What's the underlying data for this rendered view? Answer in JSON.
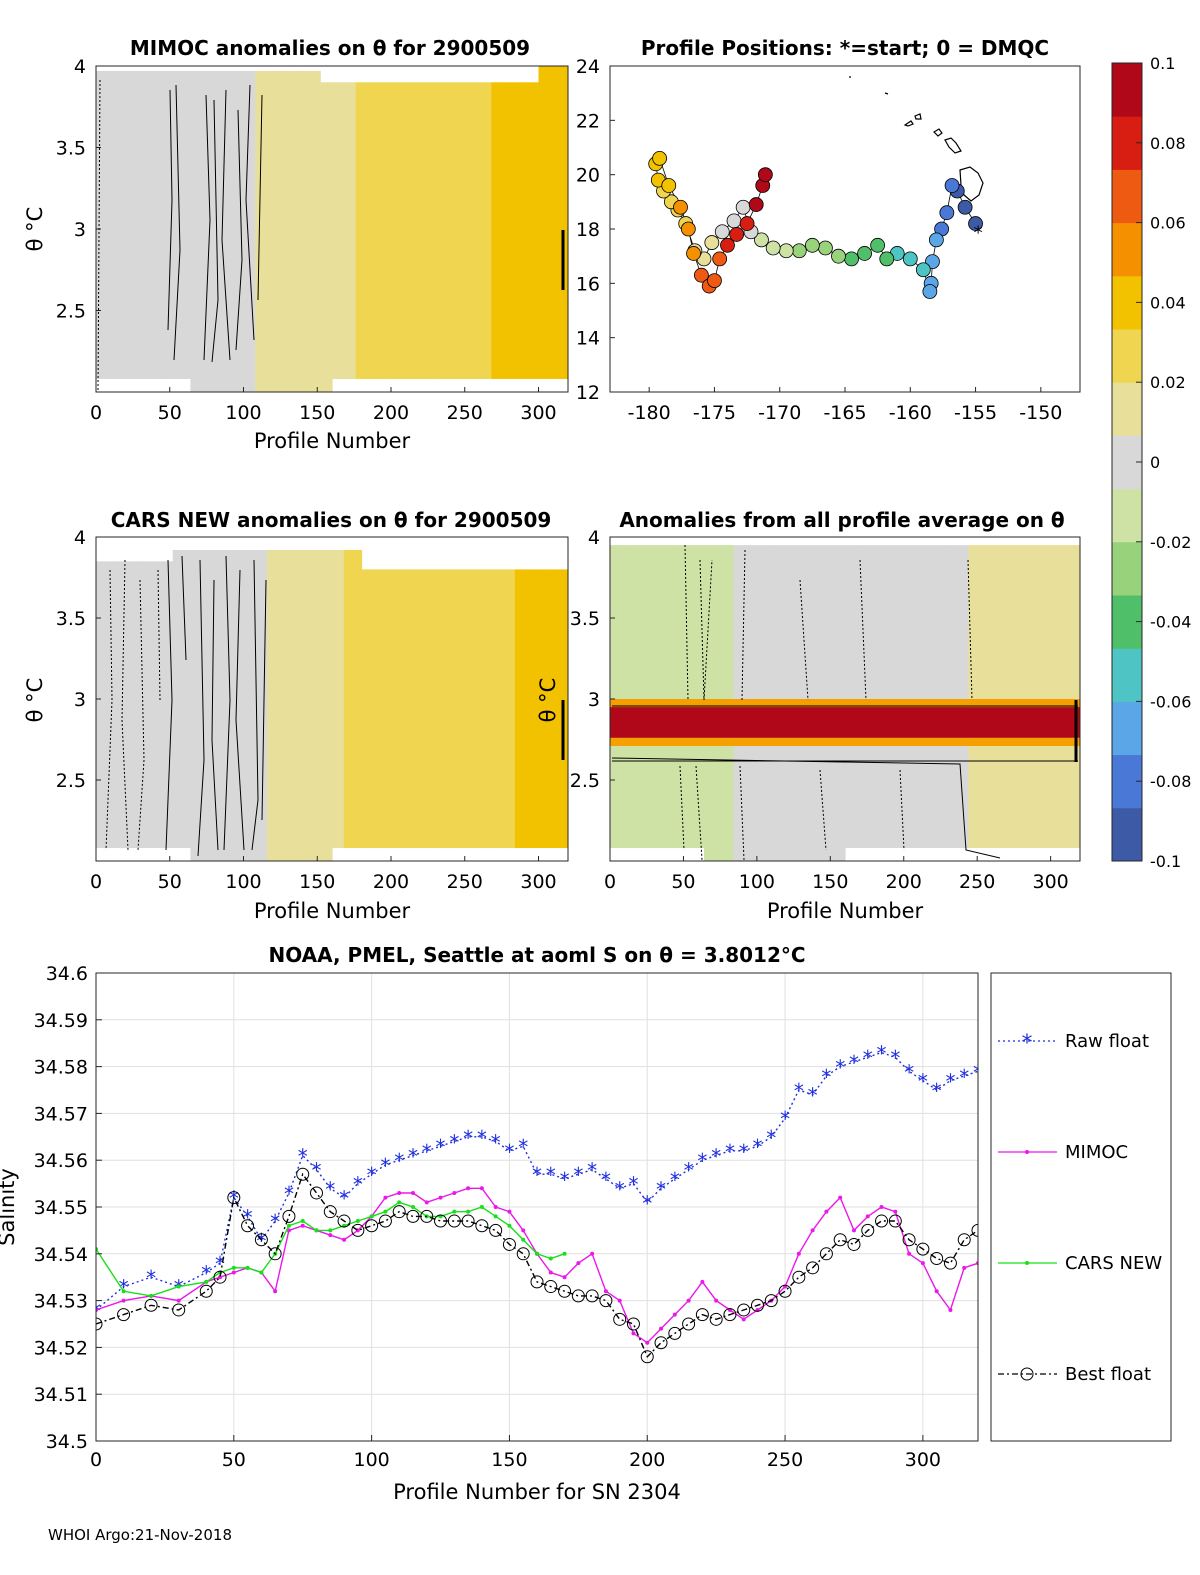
{
  "footer": "WHOI Argo:21-Nov-2018",
  "colorbar": {
    "ticks": [
      "0.1",
      "0.08",
      "0.06",
      "0.04",
      "0.02",
      "0",
      "-0.02",
      "-0.04",
      "-0.06",
      "-0.08",
      "-0.1"
    ],
    "range": [
      -0.1,
      0.1
    ],
    "colors": [
      "#3d5aa6",
      "#4a78d6",
      "#5aa6e6",
      "#4fc4c4",
      "#4fbf6a",
      "#98d27a",
      "#cfe2a6",
      "#d8d8d8",
      "#e8e09a",
      "#f0d650",
      "#f2c200",
      "#f59000",
      "#ee5a12",
      "#d81e12",
      "#b00818"
    ]
  },
  "chart_data": [
    {
      "id": "mimoc",
      "type": "heatmap",
      "title": "MIMOC anomalies on θ  for 2900509",
      "xlabel": "Profile Number",
      "ylabel": "θ °C",
      "xlim": [
        0,
        320
      ],
      "ylim": [
        2.0,
        4.0
      ],
      "xticks": [
        "0",
        "50",
        "100",
        "150",
        "200",
        "250",
        "300"
      ],
      "yticks": [
        "2.5",
        "3",
        "3.5",
        "4"
      ],
      "anomaly_by_profile": [
        [
          0,
          0.0
        ],
        [
          50,
          0.004
        ],
        [
          100,
          0.004
        ],
        [
          130,
          0.012
        ],
        [
          200,
          0.024
        ],
        [
          250,
          0.032
        ],
        [
          300,
          0.036
        ],
        [
          320,
          0.044
        ]
      ]
    },
    {
      "id": "positions",
      "type": "scatter",
      "title": "Profile Positions: *=start; 0 = DMQC",
      "xlim": [
        -183,
        -147
      ],
      "ylim": [
        12,
        24
      ],
      "xticks": [
        "-180",
        "-175",
        "-170",
        "-165",
        "-160",
        "-155",
        "-150"
      ],
      "yticks": [
        "12",
        "14",
        "16",
        "18",
        "20",
        "22",
        "24"
      ],
      "track": [
        [
          -155,
          18.2
        ],
        [
          -155.8,
          18.8
        ],
        [
          -156.4,
          19.4
        ],
        [
          -156.8,
          19.6
        ],
        [
          -157.2,
          18.6
        ],
        [
          -157.6,
          18.0
        ],
        [
          -158,
          17.6
        ],
        [
          -158.3,
          16.8
        ],
        [
          -158.4,
          16.0
        ],
        [
          -158.5,
          15.7
        ],
        [
          -159,
          16.5
        ],
        [
          -160,
          16.9
        ],
        [
          -161,
          17.1
        ],
        [
          -161.8,
          16.9
        ],
        [
          -162.5,
          17.4
        ],
        [
          -163.5,
          17.1
        ],
        [
          -164.5,
          16.9
        ],
        [
          -165.5,
          17.0
        ],
        [
          -166.5,
          17.3
        ],
        [
          -167.5,
          17.4
        ],
        [
          -168.5,
          17.2
        ],
        [
          -169.5,
          17.2
        ],
        [
          -170.5,
          17.3
        ],
        [
          -171.4,
          17.6
        ],
        [
          -172.2,
          17.9
        ],
        [
          -172.8,
          18.8
        ],
        [
          -173.5,
          18.3
        ],
        [
          -174.4,
          17.9
        ],
        [
          -175.2,
          17.5
        ],
        [
          -175.8,
          16.9
        ],
        [
          -176.5,
          17.2
        ],
        [
          -177.2,
          18.2
        ],
        [
          -177.8,
          18.7
        ],
        [
          -178.3,
          19.0
        ],
        [
          -178.9,
          19.4
        ],
        [
          -179.3,
          19.8
        ],
        [
          -179.5,
          20.4
        ],
        [
          -179.2,
          20.6
        ],
        [
          -178.5,
          19.6
        ],
        [
          -177.6,
          18.8
        ],
        [
          -177.0,
          18.0
        ],
        [
          -176.6,
          17.1
        ],
        [
          -176.0,
          16.3
        ],
        [
          -175.4,
          15.9
        ],
        [
          -175.0,
          16.1
        ],
        [
          -174.6,
          16.9
        ],
        [
          -174.0,
          17.4
        ],
        [
          -173.3,
          17.8
        ],
        [
          -172.5,
          18.2
        ],
        [
          -171.8,
          18.9
        ],
        [
          -171.3,
          19.6
        ],
        [
          -171.1,
          20.0
        ]
      ],
      "start": [
        -154.8,
        17.9
      ]
    },
    {
      "id": "cars",
      "type": "heatmap",
      "title": "CARS NEW anomalies on θ for 2900509",
      "xlabel": "Profile Number",
      "ylabel": "θ °C",
      "xlim": [
        0,
        320
      ],
      "ylim": [
        2.0,
        4.0
      ],
      "xticks": [
        "0",
        "50",
        "100",
        "150",
        "200",
        "250",
        "300"
      ],
      "yticks": [
        "2.5",
        "3",
        "3.5",
        "4"
      ],
      "anomaly_by_profile": [
        [
          0,
          0.0
        ],
        [
          60,
          0.0
        ],
        [
          110,
          0.004
        ],
        [
          140,
          0.014
        ],
        [
          200,
          0.026
        ],
        [
          260,
          0.03
        ],
        [
          300,
          0.036
        ],
        [
          320,
          0.044
        ]
      ]
    },
    {
      "id": "allavg",
      "type": "heatmap",
      "title": "Anomalies from all profile average on θ",
      "xlabel": "Profile Number",
      "ylabel": "θ °C",
      "xlim": [
        0,
        320
      ],
      "ylim": [
        2.0,
        4.0
      ],
      "xticks": [
        "0",
        "50",
        "100",
        "150",
        "200",
        "250",
        "300"
      ],
      "yticks": [
        "2.5",
        "3",
        "3.5",
        "4"
      ],
      "anomaly_by_profile": [
        [
          0,
          -0.014
        ],
        [
          60,
          -0.01
        ],
        [
          100,
          -0.004
        ],
        [
          150,
          0.0
        ],
        [
          240,
          0.004
        ],
        [
          250,
          0.016
        ],
        [
          320,
          0.02
        ]
      ],
      "band": {
        "theta_low": 2.76,
        "theta_high": 2.95,
        "value": 0.1
      }
    },
    {
      "id": "salinity",
      "type": "line",
      "title": "NOAA, PMEL, Seattle at aoml S on θ = 3.8012°C",
      "xlabel": "Profile Number for SN 2304",
      "ylabel": "Salinity",
      "xlim": [
        0,
        320
      ],
      "ylim": [
        34.5,
        34.6
      ],
      "xticks": [
        "0",
        "50",
        "100",
        "150",
        "200",
        "250",
        "300"
      ],
      "yticks": [
        "34.5",
        "34.51",
        "34.52",
        "34.53",
        "34.54",
        "34.55",
        "34.56",
        "34.57",
        "34.58",
        "34.59",
        "34.6"
      ],
      "series": [
        {
          "name": "Raw float",
          "color": "#1f2fe0",
          "x": [
            0,
            10,
            20,
            30,
            40,
            45,
            50,
            55,
            60,
            65,
            70,
            75,
            80,
            85,
            90,
            95,
            100,
            105,
            110,
            115,
            120,
            125,
            130,
            135,
            140,
            145,
            150,
            155,
            160,
            165,
            170,
            175,
            180,
            185,
            190,
            195,
            200,
            205,
            210,
            215,
            220,
            225,
            230,
            235,
            240,
            245,
            250,
            255,
            260,
            265,
            270,
            275,
            280,
            285,
            290,
            295,
            300,
            305,
            310,
            315,
            320
          ],
          "values": [
            34.528,
            34.533,
            34.535,
            34.533,
            34.536,
            34.538,
            34.552,
            34.548,
            34.543,
            34.547,
            34.553,
            34.561,
            34.558,
            34.554,
            34.552,
            34.555,
            34.557,
            34.559,
            34.56,
            34.561,
            34.562,
            34.563,
            34.564,
            34.565,
            34.565,
            34.564,
            34.562,
            34.563,
            34.557,
            34.557,
            34.556,
            34.557,
            34.558,
            34.556,
            34.554,
            34.555,
            34.551,
            34.554,
            34.556,
            34.558,
            34.56,
            34.561,
            34.562,
            34.562,
            34.563,
            34.565,
            34.569,
            34.575,
            34.574,
            34.578,
            34.58,
            34.581,
            34.582,
            34.583,
            34.582,
            34.579,
            34.577,
            34.575,
            34.577,
            34.578,
            34.579
          ]
        },
        {
          "name": "MIMOC",
          "color": "#ea18ea",
          "x": [
            0,
            10,
            20,
            30,
            40,
            45,
            50,
            55,
            60,
            65,
            70,
            75,
            80,
            85,
            90,
            95,
            100,
            105,
            110,
            115,
            120,
            125,
            130,
            135,
            140,
            145,
            150,
            155,
            160,
            165,
            170,
            175,
            180,
            185,
            190,
            195,
            200,
            205,
            210,
            215,
            220,
            225,
            230,
            235,
            240,
            245,
            250,
            255,
            260,
            265,
            270,
            275,
            280,
            285,
            290,
            295,
            300,
            305,
            310,
            315,
            320
          ],
          "values": [
            34.528,
            34.53,
            34.531,
            34.53,
            34.534,
            34.535,
            34.536,
            34.537,
            34.536,
            34.532,
            34.545,
            34.546,
            34.545,
            34.544,
            34.543,
            34.545,
            34.548,
            34.552,
            34.553,
            34.553,
            34.551,
            34.552,
            34.553,
            34.554,
            34.554,
            34.55,
            34.549,
            34.545,
            34.54,
            34.536,
            34.535,
            34.538,
            34.54,
            34.532,
            34.53,
            34.523,
            34.521,
            34.524,
            34.527,
            34.53,
            34.534,
            34.53,
            34.528,
            34.526,
            34.528,
            34.53,
            34.533,
            34.54,
            34.545,
            34.549,
            34.552,
            34.545,
            34.548,
            34.55,
            34.549,
            34.54,
            34.538,
            34.532,
            34.528,
            34.537,
            34.538
          ]
        },
        {
          "name": "CARS NEW",
          "color": "#18e018",
          "x": [
            0,
            10,
            20,
            30,
            40,
            45,
            50,
            55,
            60,
            65,
            70,
            75,
            80,
            85,
            90,
            95,
            100,
            105,
            110,
            115,
            120,
            125,
            130,
            135,
            140,
            145,
            150,
            155,
            160,
            165,
            170
          ],
          "values": [
            34.541,
            34.532,
            34.531,
            34.533,
            34.534,
            34.536,
            34.537,
            34.537,
            34.536,
            34.54,
            34.546,
            34.547,
            34.545,
            34.545,
            34.546,
            34.547,
            34.548,
            34.549,
            34.551,
            34.55,
            34.548,
            34.548,
            34.549,
            34.549,
            34.55,
            34.548,
            34.546,
            34.543,
            34.54,
            34.539,
            34.54
          ]
        },
        {
          "name": "Best float",
          "color": "#000000",
          "x": [
            0,
            10,
            20,
            30,
            40,
            45,
            50,
            55,
            60,
            65,
            70,
            75,
            80,
            85,
            90,
            95,
            100,
            105,
            110,
            115,
            120,
            125,
            130,
            135,
            140,
            145,
            150,
            155,
            160,
            165,
            170,
            175,
            180,
            185,
            190,
            195,
            200,
            205,
            210,
            215,
            220,
            225,
            230,
            235,
            240,
            245,
            250,
            255,
            260,
            265,
            270,
            275,
            280,
            285,
            290,
            295,
            300,
            305,
            310,
            315,
            320
          ],
          "values": [
            34.525,
            34.527,
            34.529,
            34.528,
            34.532,
            34.535,
            34.552,
            34.546,
            34.543,
            34.54,
            34.548,
            34.557,
            34.553,
            34.549,
            34.547,
            34.545,
            34.546,
            34.547,
            34.549,
            34.548,
            34.548,
            34.547,
            34.547,
            34.547,
            34.546,
            34.545,
            34.542,
            34.54,
            34.534,
            34.533,
            34.532,
            34.531,
            34.531,
            34.53,
            34.526,
            34.525,
            34.518,
            34.521,
            34.523,
            34.525,
            34.527,
            34.526,
            34.527,
            34.528,
            34.529,
            34.53,
            34.532,
            34.535,
            34.537,
            34.54,
            34.543,
            34.542,
            34.545,
            34.547,
            34.547,
            34.543,
            34.541,
            34.539,
            34.538,
            34.543,
            34.545
          ]
        }
      ],
      "legend": "right-outside"
    }
  ]
}
